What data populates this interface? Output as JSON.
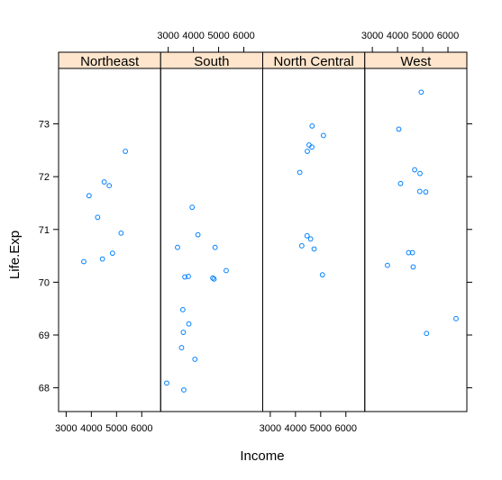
{
  "chart_data": {
    "type": "scatter",
    "xlabel": "Income",
    "ylabel": "Life.Exp",
    "xlim": [
      2700,
      6750
    ],
    "ylim": [
      67.55,
      74.05
    ],
    "x_ticks": [
      3000,
      4000,
      5000,
      6000
    ],
    "x_tick_labels": [
      "3000",
      "4000",
      "5000",
      "6000"
    ],
    "y_ticks": [
      68,
      69,
      70,
      71,
      72,
      73
    ],
    "y_tick_labels": [
      "68",
      "69",
      "70",
      "71",
      "72",
      "73"
    ],
    "grid": false,
    "point_color": "#0080FF",
    "strip_color": "#FFE5CC",
    "panels": [
      {
        "name": "Northeast",
        "points": [
          {
            "x": 3700,
            "y": 70.39
          },
          {
            "x": 3910,
            "y": 71.64
          },
          {
            "x": 4250,
            "y": 71.23
          },
          {
            "x": 4440,
            "y": 70.44
          },
          {
            "x": 4510,
            "y": 71.9
          },
          {
            "x": 4710,
            "y": 71.83
          },
          {
            "x": 4840,
            "y": 70.55
          },
          {
            "x": 5180,
            "y": 70.93
          },
          {
            "x": 5350,
            "y": 72.48
          }
        ]
      },
      {
        "name": "South",
        "points": [
          {
            "x": 2940,
            "y": 68.09
          },
          {
            "x": 3370,
            "y": 70.66
          },
          {
            "x": 3530,
            "y": 68.76
          },
          {
            "x": 3580,
            "y": 69.48
          },
          {
            "x": 3600,
            "y": 69.05
          },
          {
            "x": 3620,
            "y": 67.96
          },
          {
            "x": 3660,
            "y": 70.1
          },
          {
            "x": 3800,
            "y": 70.11
          },
          {
            "x": 3820,
            "y": 69.21
          },
          {
            "x": 3950,
            "y": 71.42
          },
          {
            "x": 4060,
            "y": 68.54
          },
          {
            "x": 4180,
            "y": 70.9
          },
          {
            "x": 4770,
            "y": 70.08
          },
          {
            "x": 4820,
            "y": 70.06
          },
          {
            "x": 4860,
            "y": 70.66
          },
          {
            "x": 5300,
            "y": 70.22
          }
        ]
      },
      {
        "name": "North Central",
        "points": [
          {
            "x": 4170,
            "y": 72.08
          },
          {
            "x": 4250,
            "y": 70.69
          },
          {
            "x": 4460,
            "y": 70.88
          },
          {
            "x": 4470,
            "y": 72.48
          },
          {
            "x": 4540,
            "y": 72.6
          },
          {
            "x": 4600,
            "y": 70.82
          },
          {
            "x": 4650,
            "y": 72.56
          },
          {
            "x": 4660,
            "y": 72.96
          },
          {
            "x": 4740,
            "y": 70.63
          },
          {
            "x": 5070,
            "y": 70.14
          },
          {
            "x": 5110,
            "y": 72.78
          }
        ]
      },
      {
        "name": "West",
        "points": [
          {
            "x": 3600,
            "y": 70.32
          },
          {
            "x": 4050,
            "y": 72.9
          },
          {
            "x": 4120,
            "y": 71.87
          },
          {
            "x": 4440,
            "y": 70.56
          },
          {
            "x": 4590,
            "y": 70.56
          },
          {
            "x": 4620,
            "y": 70.29
          },
          {
            "x": 4680,
            "y": 72.13
          },
          {
            "x": 4880,
            "y": 71.72
          },
          {
            "x": 4890,
            "y": 72.06
          },
          {
            "x": 4940,
            "y": 73.6
          },
          {
            "x": 5120,
            "y": 71.71
          },
          {
            "x": 5150,
            "y": 69.03
          },
          {
            "x": 6320,
            "y": 69.31
          }
        ]
      }
    ]
  }
}
